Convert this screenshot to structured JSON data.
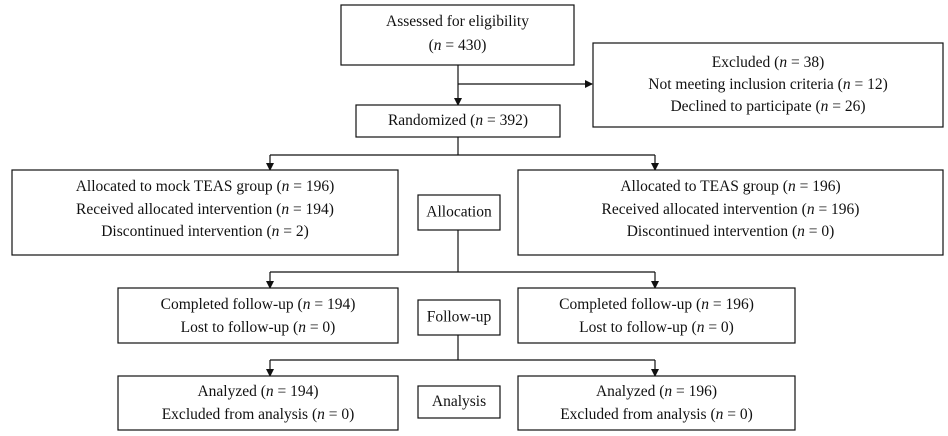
{
  "nodes": [
    {
      "id": "assessed",
      "lines": [
        "Assessed for eligibility",
        "(n = 430)"
      ]
    },
    {
      "id": "excluded",
      "lines": [
        "Excluded (n = 38)",
        "Not meeting inclusion criteria (n = 12)",
        "Declined to participate (n = 26)"
      ]
    },
    {
      "id": "randomized",
      "lines": [
        "Randomized (n = 392)"
      ]
    },
    {
      "id": "alloc-left",
      "lines": [
        "Allocated to mock TEAS group (n = 196)",
        "Received allocated intervention (n = 194)",
        "Discontinued intervention (n = 2)"
      ]
    },
    {
      "id": "alloc-label",
      "lines": [
        "Allocation"
      ]
    },
    {
      "id": "alloc-right",
      "lines": [
        "Allocated to TEAS group (n = 196)",
        "Received allocated intervention (n = 196)",
        "Discontinued intervention (n = 0)"
      ]
    },
    {
      "id": "follow-left",
      "lines": [
        "Completed follow-up (n = 194)",
        "Lost to follow-up (n = 0)"
      ]
    },
    {
      "id": "follow-label",
      "lines": [
        "Follow-up"
      ]
    },
    {
      "id": "follow-right",
      "lines": [
        "Completed follow-up (n = 196)",
        "Lost to follow-up (n = 0)"
      ]
    },
    {
      "id": "analysis-left",
      "lines": [
        "Analyzed (n = 194)",
        "Excluded from analysis (n = 0)"
      ]
    },
    {
      "id": "analysis-label",
      "lines": [
        "Analysis"
      ]
    },
    {
      "id": "analysis-right",
      "lines": [
        "Analyzed (n = 196)",
        "Excluded from analysis (n = 0)"
      ]
    }
  ]
}
